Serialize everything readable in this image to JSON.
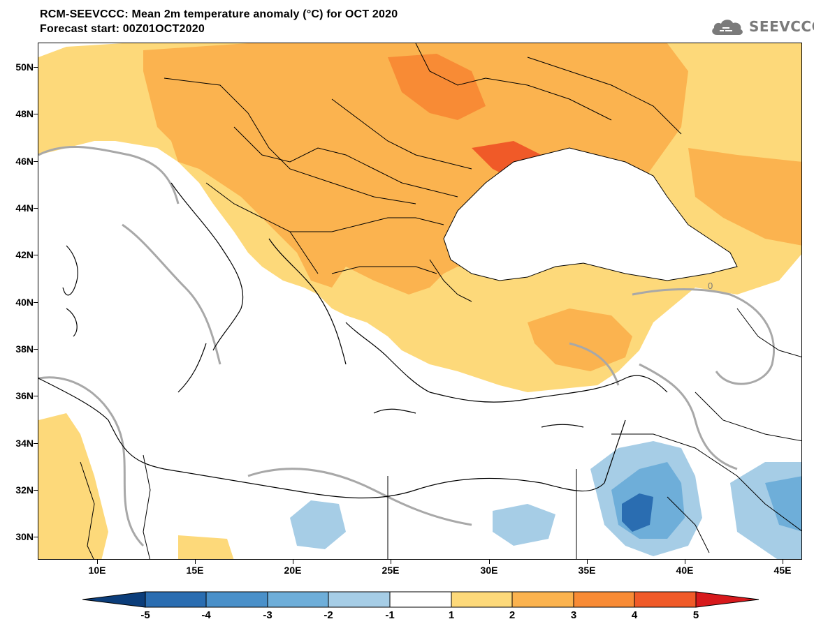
{
  "title": {
    "line1": "RCM-SEEVCCC: Mean 2m temperature anomaly (°C) for OCT 2020",
    "line2": "Forecast start: 00Z01OCT2020"
  },
  "logo": {
    "text": "SEEVCCC",
    "icon": "cloud-icon"
  },
  "axes": {
    "lat_labels": [
      "50N",
      "48N",
      "46N",
      "44N",
      "42N",
      "40N",
      "38N",
      "36N",
      "34N",
      "32N",
      "30N"
    ],
    "lon_labels": [
      "10E",
      "15E",
      "20E",
      "25E",
      "30E",
      "35E",
      "40E",
      "45E"
    ]
  },
  "colorbar": {
    "labels": [
      "-5",
      "-4",
      "-3",
      "-2",
      "-1",
      "1",
      "2",
      "3",
      "4",
      "5"
    ],
    "colors": [
      "#0b3d7a",
      "#2a6db1",
      "#4a90c9",
      "#6eaed9",
      "#a6cde6",
      "#ffffff",
      "#fdd97a",
      "#fbb34f",
      "#f88b35",
      "#f05a28",
      "#d7191c"
    ]
  },
  "contour_label": "0"
}
